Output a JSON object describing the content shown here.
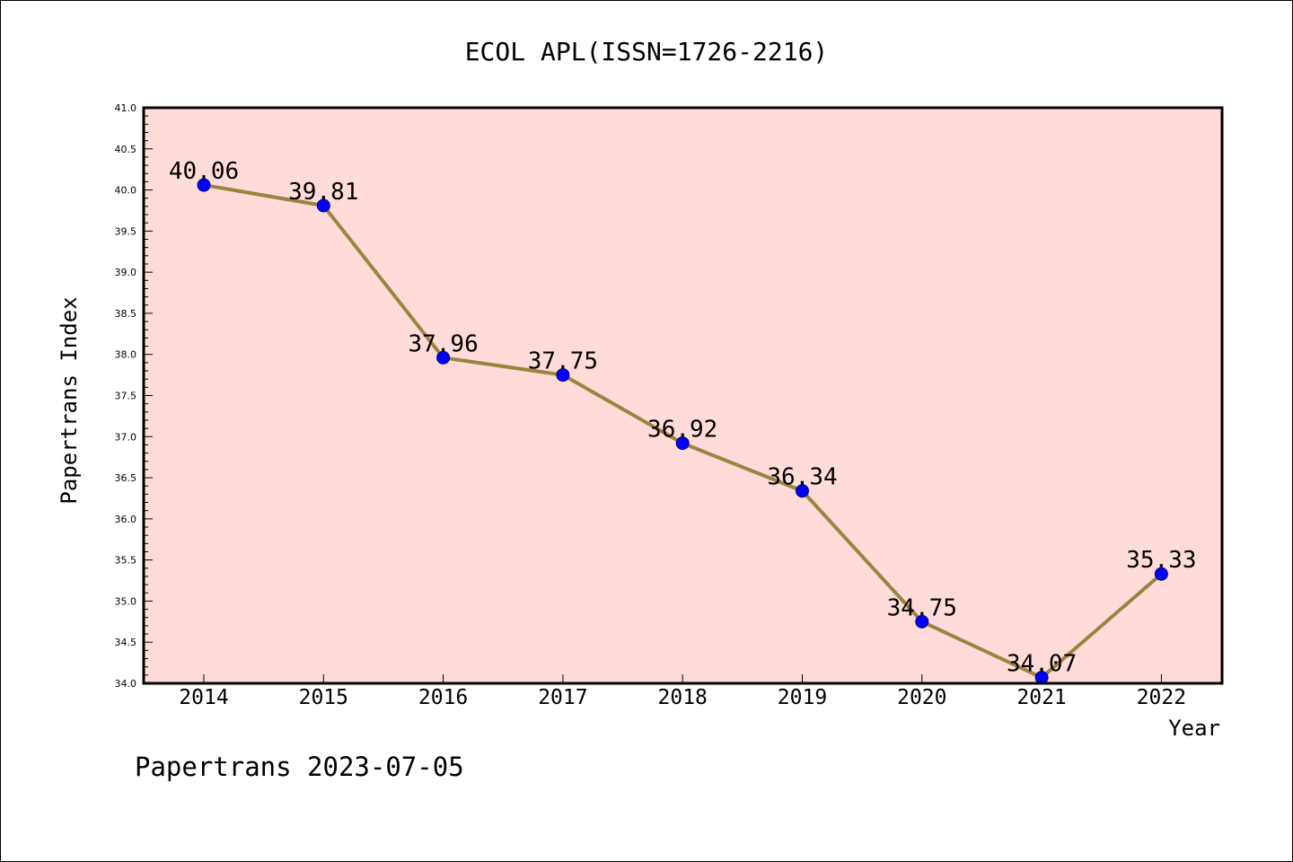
{
  "chart_data": {
    "type": "line",
    "title": "ECOL APL(ISSN=1726-2216)",
    "xlabel": "Year",
    "ylabel": "Papertrans Index",
    "categories": [
      "2014",
      "2015",
      "2016",
      "2017",
      "2018",
      "2019",
      "2020",
      "2021",
      "2022"
    ],
    "series": [
      {
        "values": [
          40.06,
          39.81,
          37.96,
          37.75,
          36.92,
          36.34,
          34.75,
          34.07,
          35.33
        ],
        "labels": [
          "40.06",
          "39.81",
          "37.96",
          "37.75",
          "36.92",
          "36.34",
          "34.75",
          "34.07",
          "35.33"
        ]
      }
    ],
    "ylim": [
      34.0,
      41.0
    ],
    "yticks": [
      "34.0",
      "34.5",
      "35.0",
      "35.5",
      "36.0",
      "36.5",
      "37.0",
      "37.5",
      "38.0",
      "38.5",
      "39.0",
      "39.5",
      "40.0",
      "40.5",
      "41.0"
    ],
    "grid": false,
    "legend": "none",
    "colors": {
      "plot_background": "#FFDCDA",
      "line": "#9A8440",
      "marker": "#0000FF",
      "marker_edge": "#00007A"
    },
    "footer": "Papertrans 2023-07-05"
  }
}
